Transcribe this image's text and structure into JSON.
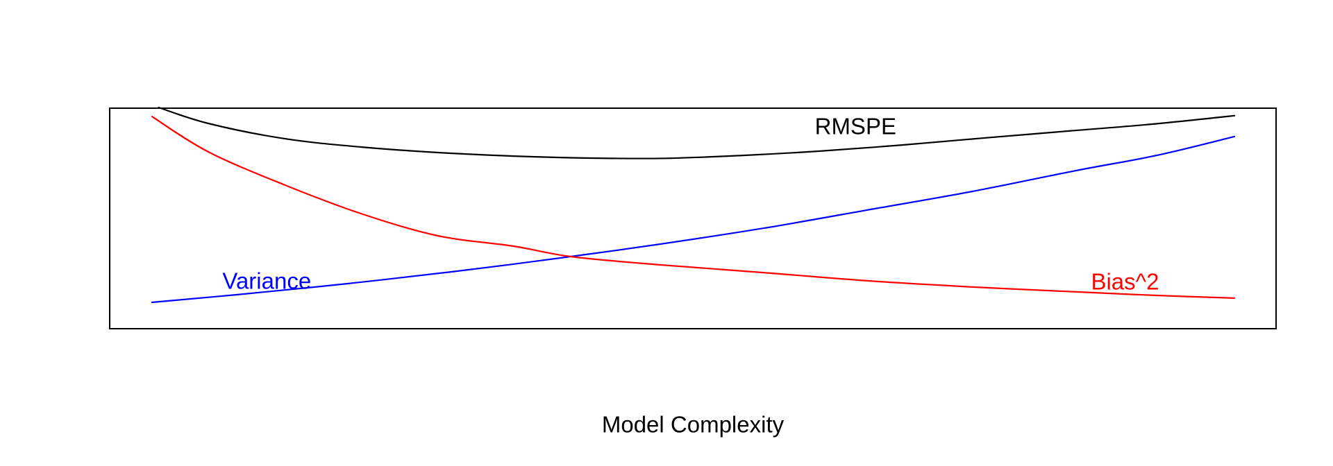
{
  "figure": {
    "background": "#FFFFFF",
    "border_color": "#000000"
  },
  "chart_data": {
    "type": "line",
    "title": "",
    "xlabel": "Model Complexity",
    "ylabel": "",
    "grid": false,
    "axes": {
      "box": true,
      "ticks": false,
      "tick_labels": false
    },
    "legend": "inline-labels",
    "xlim": [
      0,
      1
    ],
    "ylim": [
      0,
      1
    ],
    "series": [
      {
        "name": "RMSPE",
        "label": "RMSPE",
        "color": "#000000",
        "label_pos": {
          "x": 0.65,
          "y": 0.916
        },
        "points": [
          [
            0.006,
            1.0
          ],
          [
            0.052,
            0.928
          ],
          [
            0.123,
            0.859
          ],
          [
            0.193,
            0.822
          ],
          [
            0.264,
            0.797
          ],
          [
            0.334,
            0.781
          ],
          [
            0.405,
            0.772
          ],
          [
            0.475,
            0.771
          ],
          [
            0.546,
            0.784
          ],
          [
            0.616,
            0.803
          ],
          [
            0.693,
            0.831
          ],
          [
            0.77,
            0.863
          ],
          [
            0.847,
            0.894
          ],
          [
            0.924,
            0.925
          ],
          [
            1.0,
            0.963
          ]
        ]
      },
      {
        "name": "Variance",
        "label": "Variance",
        "color": "#0000FF",
        "label_pos": {
          "x": 0.106,
          "y": 0.219
        },
        "points": [
          [
            0.0,
            0.122
          ],
          [
            0.084,
            0.159
          ],
          [
            0.18,
            0.206
          ],
          [
            0.276,
            0.259
          ],
          [
            0.373,
            0.319
          ],
          [
            0.469,
            0.384
          ],
          [
            0.565,
            0.456
          ],
          [
            0.661,
            0.538
          ],
          [
            0.758,
            0.622
          ],
          [
            0.854,
            0.716
          ],
          [
            0.928,
            0.784
          ],
          [
            1.0,
            0.869
          ]
        ]
      },
      {
        "name": "Bias^2",
        "label": "Bias^2",
        "color": "#FF0000",
        "label_pos": {
          "x": 0.899,
          "y": 0.216
        },
        "points": [
          [
            0.0,
            0.959
          ],
          [
            0.052,
            0.8
          ],
          [
            0.123,
            0.65
          ],
          [
            0.193,
            0.522
          ],
          [
            0.264,
            0.422
          ],
          [
            0.334,
            0.375
          ],
          [
            0.387,
            0.328
          ],
          [
            0.469,
            0.291
          ],
          [
            0.565,
            0.256
          ],
          [
            0.661,
            0.219
          ],
          [
            0.758,
            0.191
          ],
          [
            0.854,
            0.169
          ],
          [
            0.928,
            0.153
          ],
          [
            1.0,
            0.141
          ]
        ]
      }
    ]
  }
}
